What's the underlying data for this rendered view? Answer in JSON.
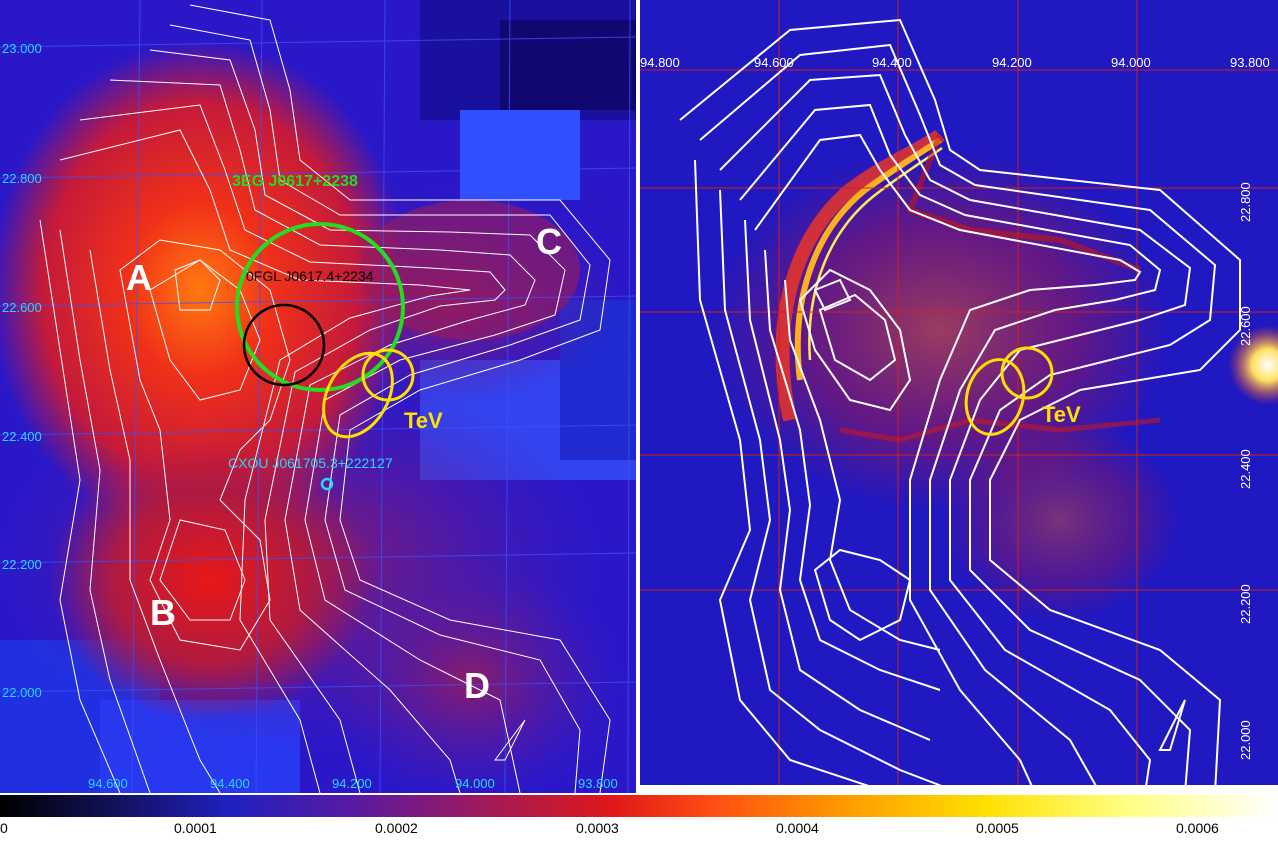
{
  "left_panel": {
    "dec_ticks": [
      "23.000",
      "22.800",
      "22.600",
      "22.400",
      "22.200",
      "22.000"
    ],
    "ra_ticks": [
      "94.600",
      "94.400",
      "94.200",
      "94.000",
      "93.800"
    ],
    "regions": [
      "A",
      "B",
      "C",
      "D"
    ],
    "source_3eg": "3EG J0617+2238",
    "source_0fgl": "0FGL J0617.4+2234",
    "source_cxou": "CXOU J061705.3+222127",
    "tev": "TeV"
  },
  "right_panel": {
    "ra_ticks": [
      "94.800",
      "94.600",
      "94.400",
      "94.200",
      "94.000",
      "93.800"
    ],
    "dec_ticks": [
      "22.800",
      "22.600",
      "22.400",
      "22.200",
      "22.000"
    ],
    "tev": "TeV"
  },
  "colorbar": {
    "labels": [
      "0",
      "0.0001",
      "0.0002",
      "0.0003",
      "0.0004",
      "0.0005",
      "0.0006"
    ]
  },
  "colors": {
    "green_circle": "#22dd22",
    "yellow_ellipse": "#ffe000",
    "black_circle": "#000000",
    "cyan_marker": "#2ad4ff",
    "contour": "#ffffff"
  }
}
